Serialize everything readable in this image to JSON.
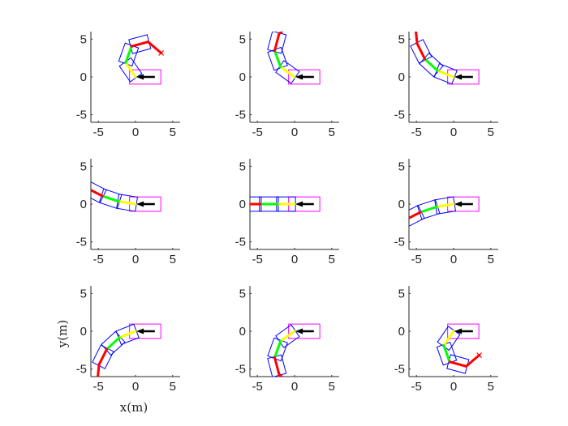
{
  "figure": {
    "xlabel": "x(m)",
    "ylabel": "y(m)"
  },
  "colors": {
    "body_outline": "#0000ff",
    "lead_outline": "#ff00ff",
    "arrow": "#000000",
    "path_near": "#ffff00",
    "path_mid": "#00ff00",
    "path_far": "#ff0000",
    "end_marker": "#ff0000"
  },
  "chart_data": [
    {
      "type": "line",
      "panel": "row1-col1",
      "xlim": [
        -6,
        6
      ],
      "ylim": [
        -6,
        6
      ],
      "xticks": [
        -5,
        0,
        5
      ],
      "yticks": [
        -5,
        0,
        5
      ],
      "start_angle_deg": 0,
      "turn_per_segment_deg": -55,
      "segment_length_m": 2.3
    },
    {
      "type": "line",
      "panel": "row1-col2",
      "xlim": [
        -6,
        6
      ],
      "ylim": [
        -6,
        6
      ],
      "xticks": [
        -5,
        0,
        5
      ],
      "yticks": [
        -5,
        0,
        5
      ],
      "start_angle_deg": 0,
      "turn_per_segment_deg": -35,
      "segment_length_m": 2.3
    },
    {
      "type": "line",
      "panel": "row1-col3",
      "xlim": [
        -6,
        6
      ],
      "ylim": [
        -6,
        6
      ],
      "xticks": [
        -5,
        0,
        5
      ],
      "yticks": [
        -5,
        0,
        5
      ],
      "start_angle_deg": 0,
      "turn_per_segment_deg": -21,
      "segment_length_m": 2.3
    },
    {
      "type": "line",
      "panel": "row2-col1",
      "xlim": [
        -6,
        6
      ],
      "ylim": [
        -6,
        6
      ],
      "xticks": [
        -5,
        0,
        5
      ],
      "yticks": [
        -5,
        0,
        5
      ],
      "start_angle_deg": 0,
      "turn_per_segment_deg": -9,
      "segment_length_m": 2.3
    },
    {
      "type": "line",
      "panel": "row2-col2",
      "xlim": [
        -6,
        6
      ],
      "ylim": [
        -6,
        6
      ],
      "xticks": [
        -5,
        0,
        5
      ],
      "yticks": [
        -5,
        0,
        5
      ],
      "start_angle_deg": 0,
      "turn_per_segment_deg": 0,
      "segment_length_m": 2.3
    },
    {
      "type": "line",
      "panel": "row2-col3",
      "xlim": [
        -6,
        6
      ],
      "ylim": [
        -6,
        6
      ],
      "xticks": [
        -5,
        0,
        5
      ],
      "yticks": [
        -5,
        0,
        5
      ],
      "start_angle_deg": 0,
      "turn_per_segment_deg": 9,
      "segment_length_m": 2.3
    },
    {
      "type": "line",
      "panel": "row3-col1",
      "xlim": [
        -6,
        6
      ],
      "ylim": [
        -6,
        6
      ],
      "xticks": [
        -5,
        0,
        5
      ],
      "yticks": [
        -5,
        0,
        5
      ],
      "start_angle_deg": 0,
      "turn_per_segment_deg": 21,
      "segment_length_m": 2.3
    },
    {
      "type": "line",
      "panel": "row3-col2",
      "xlim": [
        -6,
        6
      ],
      "ylim": [
        -6,
        6
      ],
      "xticks": [
        -5,
        0,
        5
      ],
      "yticks": [
        -5,
        0,
        5
      ],
      "start_angle_deg": 0,
      "turn_per_segment_deg": 35,
      "segment_length_m": 2.3
    },
    {
      "type": "line",
      "panel": "row3-col3",
      "xlim": [
        -6,
        6
      ],
      "ylim": [
        -6,
        6
      ],
      "xticks": [
        -5,
        0,
        5
      ],
      "yticks": [
        -5,
        0,
        5
      ],
      "start_angle_deg": 0,
      "turn_per_segment_deg": 55,
      "segment_length_m": 2.3
    }
  ]
}
